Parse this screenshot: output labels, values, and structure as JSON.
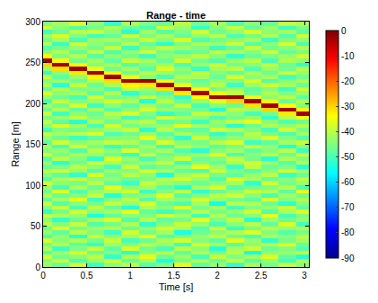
{
  "chart_data": {
    "type": "heatmap",
    "title": "Range - time",
    "x_label": "Time [s]",
    "y_label": "Range [m]",
    "color": "jet",
    "xlim": [
      0,
      3.05
    ],
    "xticks": [
      0,
      0.5,
      1,
      1.5,
      2,
      2.5,
      3
    ],
    "ylim": [
      0,
      300
    ],
    "yticks": [
      0,
      50,
      100,
      150,
      200,
      250,
      300
    ],
    "colorbar": {
      "range": [
        -90,
        0
      ],
      "ticks": [
        0,
        -10,
        -20,
        -30,
        -40,
        -50,
        -60,
        -70,
        -80,
        -90
      ]
    },
    "x": [
      0,
      0.2,
      0.4,
      0.6,
      0.8,
      1.0,
      1.2,
      1.4,
      1.6,
      1.8,
      2.0,
      2.2,
      2.4,
      2.6,
      2.8,
      3.0
    ],
    "y": [
      2.5,
      7.5,
      12.5,
      17.5,
      22.5,
      27.5,
      32.5,
      37.5,
      42.5,
      47.5,
      52.5,
      57.5,
      62.5,
      67.5,
      72.5,
      77.5,
      82.5,
      87.5,
      92.5,
      97.5,
      102.5,
      107.5,
      112.5,
      117.5,
      122.5,
      127.5,
      132.5,
      137.5,
      142.5,
      147.5,
      152.5,
      157.5,
      162.5,
      167.5,
      172.5,
      177.5,
      182.5,
      187.5,
      192.5,
      197.5,
      202.5,
      207.5,
      212.5,
      217.5,
      222.5,
      227.5,
      232.5,
      237.5,
      242.5,
      247.5,
      252.5,
      257.5,
      262.5,
      267.5,
      272.5,
      277.5,
      282.5,
      287.5,
      292.5,
      297.5
    ],
    "z": [
      [
        -42,
        -47,
        -38,
        -51,
        -44,
        -40,
        -49,
        -45,
        -36,
        -48,
        -43,
        -52,
        -41,
        -46,
        -39,
        -44
      ],
      [
        -45,
        -39,
        -50,
        -43,
        -37,
        -48,
        -42,
        -54,
        -46,
        -40,
        -47,
        -38,
        -49,
        -43,
        -51,
        -41
      ],
      [
        -38,
        -46,
        -44,
        -40,
        -52,
        -41,
        -36,
        -47,
        -43,
        -50,
        -39,
        -45,
        -42,
        -37,
        -48,
        -53
      ],
      [
        -49,
        -42,
        -37,
        -47,
        -45,
        -53,
        -44,
        -39,
        -48,
        -41,
        -46,
        -40,
        -55,
        -44,
        -42,
        -38
      ],
      [
        -41,
        -51,
        -45,
        -39,
        -48,
        -37,
        -46,
        -50,
        -40,
        -44,
        -53,
        -42,
        -38,
        -47,
        -45,
        -49
      ],
      [
        -46,
        -40,
        -48,
        -52,
        -42,
        -45,
        -39,
        -43,
        -51,
        -37,
        -41,
        -49,
        -44,
        -40,
        -36,
        -47
      ],
      [
        -37,
        -44,
        -41,
        -46,
        -39,
        -50,
        -47,
        -41,
        -38,
        -45,
        -48,
        -36,
        -43,
        -52,
        -46,
        -42
      ],
      [
        -50,
        -43,
        -53,
        -38,
        -44,
        -42,
        -35,
        -49,
        -45,
        -42,
        -39,
        -47,
        -50,
        -41,
        -44,
        -39
      ],
      [
        -43,
        -48,
        -40,
        -45,
        -51,
        -38,
        -46,
        -42,
        -54,
        -47,
        -44,
        -41,
        -37,
        -45,
        -49,
        -46
      ],
      [
        -47,
        -36,
        -46,
        -42,
        -40,
        -47,
        -43,
        -37,
        -41,
        -49,
        -38,
        -52,
        -46,
        -39,
        -43,
        -40
      ],
      [
        -40,
        -45,
        -39,
        -49,
        -46,
        -41,
        -52,
        -45,
        -39,
        -43,
        -50,
        -44,
        -40,
        -48,
        -37,
        -51
      ],
      [
        -44,
        -52,
        -47,
        -41,
        -37,
        -49,
        -40,
        -48,
        -46,
        -36,
        -45,
        -39,
        -53,
        -42,
        -47,
        -43
      ],
      [
        -39,
        -41,
        -43,
        -54,
        -48,
        -44,
        -45,
        -38,
        -42,
        -51,
        -41,
        -47,
        -44,
        -36,
        -50,
        -45
      ],
      [
        -52,
        -46,
        -38,
        -44,
        -42,
        -36,
        -48,
        -51,
        -47,
        -40,
        -46,
        -43,
        -38,
        -49,
        -41,
        -37
      ],
      [
        -45,
        -39,
        -50,
        -40,
        -47,
        -53,
        -41,
        -44,
        -37,
        -46,
        -42,
        -50,
        -45,
        -43,
        -39,
        -48
      ],
      [
        -38,
        -49,
        -44,
        -46,
        -39,
        -43,
        -37,
        -47,
        -50,
        -42,
        -55,
        -40,
        -41,
        -47,
        -52,
        -44
      ],
      [
        -48,
        -42,
        -36,
        -51,
        -45,
        -40,
        -49,
        -42,
        -44,
        -38,
        -43,
        -46,
        -48,
        -37,
        -45,
        -41
      ],
      [
        -41,
        -47,
        -45,
        -39,
        -53,
        -46,
        -43,
        -36,
        -49,
        -45,
        -40,
        -38,
        -44,
        -50,
        -42,
        -46
      ],
      [
        -46,
        -37,
        -49,
        -43,
        -41,
        -38,
        -51,
        -45,
        -40,
        -52,
        -47,
        -44,
        -39,
        -41,
        -48,
        -36
      ],
      [
        -43,
        -50,
        -41,
        -47,
        -36,
        -44,
        -42,
        -48,
        -53,
        -41,
        -37,
        -49,
        -46,
        -45,
        -40,
        -50
      ],
      [
        -37,
        -44,
        -46,
        -40,
        -48,
        -51,
        -39,
        -43,
        -45,
        -47,
        -44,
        -42,
        -52,
        -38,
        -46,
        -43
      ],
      [
        -50,
        -41,
        -38,
        -45,
        -43,
        -47,
        -46,
        -40,
        -37,
        -43,
        -50,
        -36,
        -41,
        -48,
        -44,
        -39
      ],
      [
        -44,
        -48,
        -52,
        -37,
        -46,
        -40,
        -44,
        -54,
        -42,
        -39,
        -46,
        -48,
        -43,
        -40,
        -51,
        -47
      ],
      [
        -40,
        -38,
        -43,
        -49,
        -42,
        -45,
        -37,
        -41,
        -48,
        -50,
        -38,
        -45,
        -49,
        -44,
        -37,
        -42
      ],
      [
        -47,
        -45,
        -40,
        -44,
        -50,
        -39,
        -48,
        -46,
        -43,
        -36,
        -42,
        -51,
        -40,
        -47,
        -45,
        -53
      ],
      [
        -42,
        -53,
        -47,
        -38,
        -41,
        -46,
        -42,
        -39,
        -51,
        -44,
        -48,
        -41,
        -37,
        -42,
        -49,
        -40
      ],
      [
        -49,
        -40,
        -45,
        -52,
        -37,
        -43,
        -50,
        -44,
        -38,
        -47,
        -45,
        -39,
        -46,
        -53,
        -41,
        -45
      ],
      [
        -36,
        -46,
        -41,
        -43,
        -47,
        -52,
        -38,
        -47,
        -45,
        -41,
        -36,
        -50,
        -44,
        -39,
        -47,
        -38
      ],
      [
        -45,
        -43,
        -49,
        -40,
        -44,
        -37,
        -45,
        -42,
        -49,
        -53,
        -44,
        -42,
        -48,
        -45,
        -40,
        -51
      ],
      [
        -41,
        -50,
        -37,
        -46,
        -52,
        -48,
        -41,
        -51,
        -40,
        -43,
        -49,
        -46,
        -38,
        -43,
        -54,
        -44
      ],
      [
        -48,
        -38,
        -44,
        -42,
        -39,
        -41,
        -47,
        -37,
        -44,
        -46,
        -40,
        -37,
        -51,
        -48,
        -42,
        -39
      ],
      [
        -43,
        -47,
        -51,
        -48,
        -45,
        -44,
        -36,
        -45,
        -52,
        -39,
        -47,
        -44,
        -42,
        -37,
        -45,
        -49
      ],
      [
        -39,
        -42,
        -40,
        -37,
        -50,
        -47,
        -43,
        -49,
        -41,
        -45,
        -52,
        -48,
        -40,
        -46,
        -50,
        -42
      ],
      [
        -51,
        -45,
        -46,
        -44,
        -42,
        -39,
        -52,
        -40,
        -47,
        -48,
        -38,
        -41,
        -45,
        -50,
        -38,
        -46
      ],
      [
        -44,
        -37,
        -42,
        -50,
        -38,
        -46,
        -44,
        -43,
        -36,
        -42,
        -45,
        -53,
        -47,
        -41,
        -44,
        -40
      ],
      [
        -40,
        -48,
        -53,
        -41,
        -47,
        -42,
        -40,
        -48,
        -46,
        -51,
        -43,
        -39,
        -36,
        -44,
        -49,
        -47
      ],
      [
        -46,
        -43,
        -39,
        -45,
        -43,
        -50,
        -47,
        -38,
        -42,
        -44,
        -49,
        -46,
        -43,
        -52,
        -40,
        -35
      ],
      [
        -38,
        -51,
        -44,
        -47,
        -40,
        -37,
        -45,
        -52,
        -48,
        -39,
        -41,
        -44,
        -50,
        -46,
        -32,
        -3
      ],
      [
        -47,
        -41,
        -48,
        -42,
        -49,
        -44,
        -38,
        -43,
        -45,
        -47,
        -53,
        -40,
        -42,
        -30,
        -3,
        -33
      ],
      [
        -42,
        -46,
        -37,
        -51,
        -44,
        -48,
        -42,
        -46,
        -39,
        -50,
        -44,
        -47,
        -31,
        -3,
        -34,
        -45
      ],
      [
        -50,
        -39,
        -45,
        -43,
        -38,
        -41,
        -53,
        -40,
        -47,
        -43,
        -37,
        -30,
        -3,
        -33,
        -47,
        -41
      ],
      [
        -43,
        -47,
        -50,
        -38,
        -46,
        -45,
        -39,
        -44,
        -52,
        -34,
        -3,
        -3,
        -35,
        -44,
        -40,
        -48
      ],
      [
        -37,
        -44,
        -42,
        -48,
        -41,
        -52,
        -46,
        -49,
        -32,
        -3,
        -33,
        -39,
        -46,
        -41,
        -45,
        -43
      ],
      [
        -48,
        -40,
        -46,
        -44,
        -50,
        -39,
        -43,
        -31,
        -3,
        -34,
        -46,
        -42,
        -48,
        -45,
        -51,
        -38
      ],
      [
        -41,
        -53,
        -39,
        -47,
        -42,
        -33,
        -32,
        -3,
        -35,
        -44,
        -40,
        -51,
        -43,
        -38,
        -42,
        -47
      ],
      [
        -45,
        -42,
        -47,
        -40,
        -31,
        -3,
        -3,
        -34,
        -45,
        -48,
        -43,
        -45,
        -37,
        -49,
        -44,
        -41
      ],
      [
        -39,
        -48,
        -43,
        -33,
        -3,
        -35,
        -44,
        -49,
        -41,
        -42,
        -47,
        -38,
        -44,
        -42,
        -50,
        -46
      ],
      [
        -52,
        -44,
        -32,
        -3,
        -34,
        -47,
        -40,
        -43,
        -46,
        -39,
        -45,
        -48,
        -41,
        -47,
        -38,
        -43
      ],
      [
        -43,
        -31,
        -3,
        -35,
        -46,
        -42,
        -48,
        -37,
        -44,
        -51,
        -42,
        -40,
        -49,
        -43,
        -46,
        -40
      ],
      [
        -30,
        -3,
        -34,
        -45,
        -41,
        -49,
        -45,
        -42,
        -50,
        -43,
        -38,
        -46,
        -44,
        -39,
        -47,
        -52
      ],
      [
        -3,
        -33,
        -46,
        -42,
        -48,
        -39,
        -42,
        -47,
        -38,
        -46,
        -49,
        -43,
        -40,
        -50,
        -41,
        -44
      ],
      [
        -34,
        -45,
        -41,
        -49,
        -44,
        -46,
        -51,
        -44,
        -43,
        -40,
        -44,
        -52,
        -47,
        -45,
        -43,
        -38
      ],
      [
        -44,
        -40,
        -48,
        -38,
        -50,
        -43,
        -37,
        -46,
        -49,
        -47,
        -39,
        -41,
        -45,
        -38,
        -48,
        -46
      ],
      [
        -49,
        -46,
        -43,
        -46,
        -39,
        -51,
        -44,
        -40,
        -42,
        -45,
        -51,
        -47,
        -39,
        -46,
        -44,
        -41
      ],
      [
        -40,
        -52,
        -38,
        -44,
        -47,
        -40,
        -48,
        -53,
        -46,
        -41,
        -43,
        -38,
        -49,
        -44,
        -37,
        -50
      ],
      [
        -46,
        -41,
        -50,
        -43,
        -42,
        -45,
        -39,
        -44,
        -37,
        -49,
        -46,
        -44,
        -42,
        -51,
        -45,
        -43
      ],
      [
        -42,
        -37,
        -45,
        -51,
        -48,
        -38,
        -46,
        -41,
        -48,
        -43,
        -40,
        -50,
        -46,
        -40,
        -49,
        -38
      ],
      [
        -51,
        -47,
        -40,
        -39,
        -44,
        -53,
        -42,
        -49,
        -45,
        -38,
        -47,
        -43,
        -37,
        -44,
        -42,
        -48
      ],
      [
        -38,
        -44,
        -49,
        -46,
        -41,
        -47,
        -50,
        -38,
        -43,
        -52,
        -44,
        -39,
        -48,
        -43,
        -51,
        -45
      ],
      [
        -45,
        -42,
        -37,
        -44,
        -52,
        -41,
        -45,
        -47,
        -40,
        -46,
        -42,
        -49,
        -44,
        -47,
        -39,
        -41
      ]
    ]
  }
}
